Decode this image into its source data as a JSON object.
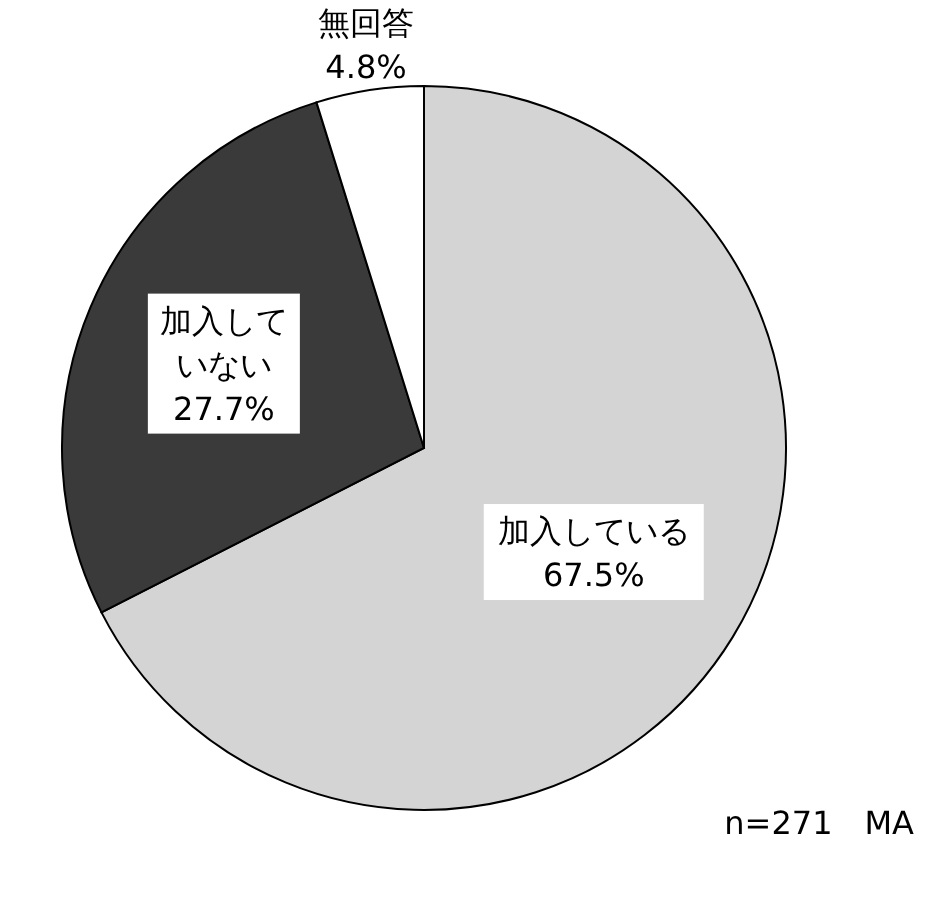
{
  "chart_data": {
    "type": "pie",
    "categories": [
      "加入している",
      "加入していない",
      "無回答"
    ],
    "values": [
      67.5,
      27.7,
      4.8
    ],
    "value_labels": [
      "67.5%",
      "27.7%",
      "4.8%"
    ],
    "colors": [
      "#d4d4d4",
      "#3a3a3a",
      "#ffffff"
    ],
    "annotations": [
      "n=271　MA"
    ]
  }
}
